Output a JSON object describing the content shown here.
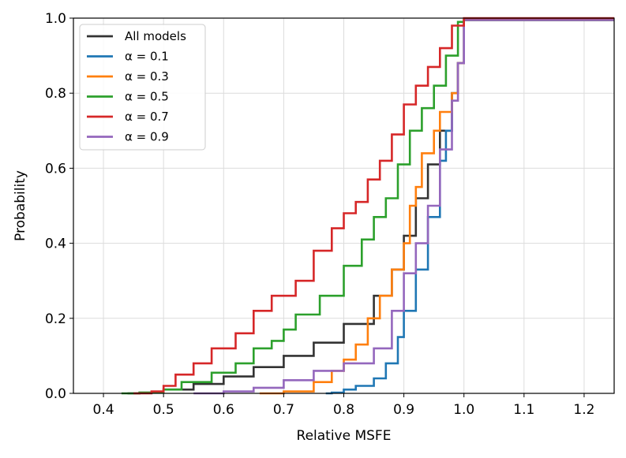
{
  "chart_data": {
    "type": "line",
    "title": "",
    "xlabel": "Relative MSFE",
    "ylabel": "Probability",
    "xlim": [
      0.35,
      1.25
    ],
    "ylim": [
      0.0,
      1.0
    ],
    "x_ticks": [
      0.4,
      0.5,
      0.6,
      0.7,
      0.8,
      0.9,
      1.0,
      1.1,
      1.2
    ],
    "x_tick_labels": [
      "0.4",
      "0.5",
      "0.6",
      "0.7",
      "0.8",
      "0.9",
      "1.0",
      "1.1",
      "1.2"
    ],
    "y_ticks": [
      0.0,
      0.2,
      0.4,
      0.6,
      0.8,
      1.0
    ],
    "y_tick_labels": [
      "0.0",
      "0.2",
      "0.4",
      "0.6",
      "0.8",
      "1.0"
    ],
    "grid": true,
    "legend_position": "top-left",
    "series": [
      {
        "name": "All models",
        "color": "#333333",
        "points": [
          [
            0.44,
            0.0
          ],
          [
            0.46,
            0.002
          ],
          [
            0.5,
            0.01
          ],
          [
            0.55,
            0.025
          ],
          [
            0.6,
            0.045
          ],
          [
            0.65,
            0.07
          ],
          [
            0.7,
            0.1
          ],
          [
            0.75,
            0.135
          ],
          [
            0.8,
            0.185
          ],
          [
            0.85,
            0.26
          ],
          [
            0.88,
            0.33
          ],
          [
            0.9,
            0.42
          ],
          [
            0.92,
            0.52
          ],
          [
            0.94,
            0.61
          ],
          [
            0.96,
            0.7
          ],
          [
            0.98,
            0.8
          ],
          [
            0.99,
            0.88
          ],
          [
            1.0,
            0.995
          ],
          [
            1.25,
            0.995
          ]
        ]
      },
      {
        "name": "α = 0.1",
        "color": "#1f77b4",
        "points": [
          [
            0.77,
            0.0
          ],
          [
            0.78,
            0.002
          ],
          [
            0.8,
            0.01
          ],
          [
            0.82,
            0.02
          ],
          [
            0.85,
            0.04
          ],
          [
            0.87,
            0.08
          ],
          [
            0.89,
            0.15
          ],
          [
            0.9,
            0.22
          ],
          [
            0.92,
            0.33
          ],
          [
            0.94,
            0.47
          ],
          [
            0.96,
            0.62
          ],
          [
            0.97,
            0.7
          ],
          [
            0.98,
            0.8
          ],
          [
            0.99,
            0.88
          ],
          [
            1.0,
            0.995
          ],
          [
            1.25,
            0.995
          ]
        ]
      },
      {
        "name": "α = 0.3",
        "color": "#ff7f0e",
        "points": [
          [
            0.66,
            0.0
          ],
          [
            0.7,
            0.005
          ],
          [
            0.75,
            0.03
          ],
          [
            0.78,
            0.06
          ],
          [
            0.8,
            0.09
          ],
          [
            0.82,
            0.13
          ],
          [
            0.84,
            0.2
          ],
          [
            0.86,
            0.26
          ],
          [
            0.88,
            0.33
          ],
          [
            0.9,
            0.4
          ],
          [
            0.91,
            0.5
          ],
          [
            0.92,
            0.55
          ],
          [
            0.93,
            0.64
          ],
          [
            0.95,
            0.7
          ],
          [
            0.96,
            0.75
          ],
          [
            0.98,
            0.8
          ],
          [
            0.99,
            0.88
          ],
          [
            1.0,
            0.995
          ],
          [
            1.25,
            0.995
          ]
        ]
      },
      {
        "name": "α = 0.5",
        "color": "#2ca02c",
        "points": [
          [
            0.43,
            0.0
          ],
          [
            0.46,
            0.002
          ],
          [
            0.5,
            0.01
          ],
          [
            0.53,
            0.03
          ],
          [
            0.58,
            0.055
          ],
          [
            0.62,
            0.08
          ],
          [
            0.65,
            0.12
          ],
          [
            0.68,
            0.14
          ],
          [
            0.7,
            0.17
          ],
          [
            0.72,
            0.21
          ],
          [
            0.76,
            0.26
          ],
          [
            0.8,
            0.34
          ],
          [
            0.83,
            0.41
          ],
          [
            0.85,
            0.47
          ],
          [
            0.87,
            0.52
          ],
          [
            0.89,
            0.61
          ],
          [
            0.91,
            0.7
          ],
          [
            0.93,
            0.76
          ],
          [
            0.95,
            0.82
          ],
          [
            0.97,
            0.9
          ],
          [
            0.99,
            0.99
          ],
          [
            1.0,
            0.995
          ],
          [
            1.25,
            0.995
          ]
        ]
      },
      {
        "name": "α = 0.7",
        "color": "#d62728",
        "points": [
          [
            0.45,
            0.0
          ],
          [
            0.48,
            0.005
          ],
          [
            0.5,
            0.02
          ],
          [
            0.52,
            0.05
          ],
          [
            0.55,
            0.08
          ],
          [
            0.58,
            0.12
          ],
          [
            0.62,
            0.16
          ],
          [
            0.65,
            0.22
          ],
          [
            0.68,
            0.26
          ],
          [
            0.72,
            0.3
          ],
          [
            0.75,
            0.38
          ],
          [
            0.78,
            0.44
          ],
          [
            0.8,
            0.48
          ],
          [
            0.82,
            0.51
          ],
          [
            0.84,
            0.57
          ],
          [
            0.86,
            0.62
          ],
          [
            0.88,
            0.69
          ],
          [
            0.9,
            0.77
          ],
          [
            0.92,
            0.82
          ],
          [
            0.94,
            0.87
          ],
          [
            0.96,
            0.92
          ],
          [
            0.98,
            0.98
          ],
          [
            1.0,
            1.0
          ],
          [
            1.25,
            1.0
          ]
        ]
      },
      {
        "name": "α = 0.9",
        "color": "#9467bd",
        "points": [
          [
            0.55,
            0.0
          ],
          [
            0.6,
            0.005
          ],
          [
            0.65,
            0.015
          ],
          [
            0.7,
            0.035
          ],
          [
            0.75,
            0.06
          ],
          [
            0.8,
            0.08
          ],
          [
            0.85,
            0.12
          ],
          [
            0.88,
            0.22
          ],
          [
            0.9,
            0.32
          ],
          [
            0.92,
            0.4
          ],
          [
            0.94,
            0.5
          ],
          [
            0.96,
            0.65
          ],
          [
            0.98,
            0.78
          ],
          [
            0.99,
            0.88
          ],
          [
            1.0,
            0.995
          ],
          [
            1.065,
            0.995
          ],
          [
            1.25,
            0.995
          ]
        ]
      }
    ]
  }
}
